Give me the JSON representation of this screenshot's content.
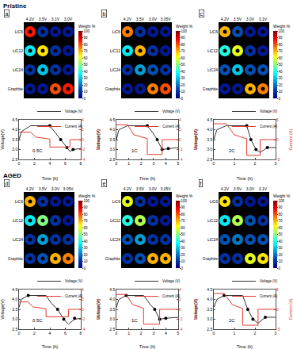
{
  "chart_data": [
    {
      "type": "line",
      "group": "Pristine",
      "panel": "a",
      "annotation": "0.5C",
      "xlabel": "Time (h)",
      "ylabel": "Voltage(V)",
      "y2label": "Current (A)",
      "legend": "upper right",
      "xlim": [
        0,
        8
      ],
      "xticks": [
        0,
        2,
        4,
        6,
        8
      ],
      "ylim": [
        2.5,
        4.5
      ],
      "yticks": [
        2.5,
        {
          "value": 3,
          "label": "3.0"
        },
        3.5,
        {
          "value": 4,
          "label": "4.0"
        },
        4.5
      ],
      "y2lim": [
        -4,
        4
      ],
      "y2ticks": [
        -4,
        -2,
        0,
        2,
        4
      ],
      "series": [
        {
          "name": "Voltage (V)",
          "color": "#333333",
          "line_style": "solid",
          "x": [
            0,
            0.3,
            1.5,
            4,
            4.6,
            5.4,
            6.2,
            6.6,
            7,
            8
          ],
          "values": [
            3.5,
            3.9,
            4.2,
            4.2,
            3.9,
            3.5,
            3.1,
            2.9,
            3.0,
            3.05
          ]
        },
        {
          "name": "Current (A)",
          "color": "#e03a2f",
          "line_style": "solid",
          "axis": "y2",
          "x": [
            0,
            1.5,
            2.2,
            4,
            4,
            6.6,
            6.6,
            8
          ],
          "values": [
            1.5,
            1.5,
            0.5,
            0.1,
            -1.5,
            -1.5,
            0,
            0
          ]
        },
        {
          "type": "scatter",
          "marker": "circle",
          "color": "#000000",
          "x": [
            4,
            5.4,
            6.2,
            7
          ],
          "values": [
            4.2,
            3.5,
            3.1,
            3.0
          ]
        }
      ],
      "maps": {
        "columns": [
          "4.2V",
          "3.5V",
          "3.1V",
          "3.0V"
        ],
        "rows": [
          "LiC6",
          "LiC12",
          "LiC24",
          "Graphite"
        ],
        "values": [
          [
            85,
            10,
            5,
            5
          ],
          [
            35,
            65,
            10,
            5
          ],
          [
            10,
            30,
            10,
            5
          ],
          [
            5,
            5,
            80,
            85
          ]
        ],
        "colorbar": {
          "title": "Weight %",
          "range": [
            0,
            100
          ],
          "ticks": [
            0,
            10,
            20,
            30,
            40,
            50,
            60,
            70,
            80,
            90,
            100
          ]
        }
      }
    },
    {
      "type": "line",
      "group": "Pristine",
      "panel": "b",
      "annotation": "1C",
      "xlabel": "Time (h)",
      "ylabel": "Voltage(V)",
      "y2label": "Current (A)",
      "legend": "upper right",
      "xlim": [
        0,
        5
      ],
      "xticks": [
        0,
        1,
        2,
        3,
        4,
        5
      ],
      "ylim": [
        2.5,
        4.5
      ],
      "yticks": [
        2.5,
        {
          "value": 3,
          "label": "3.0"
        },
        3.5,
        {
          "value": 4,
          "label": "4.0"
        },
        4.5
      ],
      "y2lim": [
        -4,
        4
      ],
      "y2ticks": [
        -4,
        -2,
        0,
        2,
        4
      ],
      "series": [
        {
          "name": "Voltage (V)",
          "color": "#333333",
          "line_style": "solid",
          "x": [
            0,
            0.2,
            0.9,
            2.5,
            3,
            3.3,
            3.7,
            4.2,
            5
          ],
          "values": [
            3.5,
            4.0,
            4.2,
            4.2,
            3.8,
            3.5,
            3.0,
            3.05,
            3.1
          ]
        },
        {
          "name": "Current (A)",
          "color": "#e03a2f",
          "line_style": "solid",
          "axis": "y2",
          "x": [
            0,
            0.9,
            1.4,
            2.5,
            2.5,
            3.7,
            3.7,
            5
          ],
          "values": [
            3,
            3,
            1,
            0.2,
            -3,
            -3,
            0,
            0
          ]
        },
        {
          "type": "scatter",
          "marker": "circle",
          "color": "#000000",
          "x": [
            2.5,
            3.3,
            3.7,
            4.2
          ],
          "values": [
            4.2,
            3.5,
            3.0,
            3.05
          ]
        }
      ],
      "maps": {
        "columns": [
          "4.2V",
          "3.5V",
          "3.0V",
          "3.05V"
        ],
        "rows": [
          "LiC6",
          "LiC12",
          "LiC24",
          "Graphite"
        ],
        "values": [
          [
            75,
            10,
            5,
            5
          ],
          [
            35,
            70,
            10,
            5
          ],
          [
            10,
            25,
            15,
            10
          ],
          [
            5,
            5,
            75,
            80
          ]
        ],
        "colorbar": {
          "title": "Weight %",
          "range": [
            0,
            100
          ],
          "ticks": [
            0,
            10,
            20,
            30,
            40,
            50,
            60,
            70,
            80,
            90,
            100
          ]
        }
      }
    },
    {
      "type": "line",
      "group": "Pristine",
      "panel": "c",
      "annotation": "2C",
      "xlabel": "Time (h)",
      "ylabel": "Voltage(V)",
      "y2label": "Current (A)",
      "legend": "upper right",
      "xlim": [
        0,
        3
      ],
      "xticks": [
        0,
        1,
        2,
        3
      ],
      "ylim": [
        2.5,
        4.5
      ],
      "yticks": [
        2.5,
        {
          "value": 3,
          "label": "3.0"
        },
        3.5,
        {
          "value": 4,
          "label": "4.0"
        },
        4.5
      ],
      "y2lim": [
        -5,
        5
      ],
      "y2ticks": [
        -5,
        0,
        5
      ],
      "series": [
        {
          "name": "Voltage (V)",
          "color": "#333333",
          "line_style": "solid",
          "x": [
            0,
            0.15,
            0.6,
            1.6,
            1.8,
            2.05,
            2.25,
            2.6,
            3
          ],
          "values": [
            3.5,
            4.0,
            4.2,
            4.2,
            3.5,
            3.0,
            2.85,
            3.1,
            3.1
          ]
        },
        {
          "name": "Current (A)",
          "color": "#e03a2f",
          "line_style": "solid",
          "axis": "y2",
          "x": [
            0,
            0.6,
            1,
            1.6,
            1.6,
            2.25,
            2.25,
            3
          ],
          "values": [
            4,
            4,
            1.2,
            0.2,
            -4,
            -4,
            0,
            0
          ]
        },
        {
          "type": "scatter",
          "marker": "circle",
          "color": "#000000",
          "x": [
            1.6,
            1.8,
            2.05,
            2.6
          ],
          "values": [
            4.2,
            3.5,
            3.0,
            3.1
          ]
        }
      ],
      "maps": {
        "columns": [
          "4.2V",
          "3.5V",
          "3.0V",
          "3.1V"
        ],
        "rows": [
          "LiC6",
          "LiC12",
          "LiC24",
          "Graphite"
        ],
        "values": [
          [
            70,
            15,
            5,
            5
          ],
          [
            40,
            60,
            10,
            5
          ],
          [
            15,
            30,
            15,
            15
          ],
          [
            5,
            5,
            70,
            75
          ]
        ],
        "colorbar": {
          "title": "Weight %",
          "range": [
            0,
            100
          ],
          "ticks": [
            0,
            10,
            20,
            30,
            40,
            50,
            60,
            70,
            80,
            90,
            100
          ]
        }
      }
    },
    {
      "type": "line",
      "group": "AGED",
      "panel": "d",
      "annotation": "0.5C",
      "xlabel": "Time (h)",
      "ylabel": "Voltage(V)",
      "y2label": "Current (A)",
      "legend": "upper right",
      "xlim": [
        0,
        8
      ],
      "xticks": [
        0,
        2,
        4,
        6,
        8
      ],
      "ylim": [
        2.5,
        4.5
      ],
      "yticks": [
        2.5,
        {
          "value": 3,
          "label": "3.0"
        },
        3.5,
        {
          "value": 4,
          "label": "4.0"
        },
        4.5
      ],
      "y2lim": [
        -4,
        4
      ],
      "y2ticks": [
        -4,
        -2,
        0,
        2,
        4
      ],
      "series": [
        {
          "name": "Voltage (V)",
          "color": "#333333",
          "line_style": "solid",
          "x": [
            0,
            0.3,
            1.2,
            3.5,
            4.2,
            5,
            5.8,
            6.4,
            7.2,
            8
          ],
          "values": [
            3.6,
            4.0,
            4.2,
            4.2,
            3.8,
            3.5,
            3.0,
            2.75,
            3.0,
            3.05
          ]
        },
        {
          "name": "Current (A)",
          "color": "#e03a2f",
          "line_style": "solid",
          "axis": "y2",
          "x": [
            0,
            1.2,
            1.8,
            3.5,
            3.5,
            6.4,
            6.4,
            8
          ],
          "values": [
            1.5,
            1.5,
            0.5,
            0.1,
            -1.5,
            -1.5,
            0,
            0
          ]
        },
        {
          "type": "scatter",
          "marker": "circle",
          "color": "#000000",
          "x": [
            1.2,
            5,
            5.8,
            7.2
          ],
          "values": [
            4.2,
            3.5,
            3.0,
            3.05
          ]
        }
      ],
      "maps": {
        "columns": [
          "4.2V",
          "3.5V",
          "3.0V",
          "3.05V"
        ],
        "rows": [
          "LiC6",
          "LiC12",
          "LiC24",
          "Graphite"
        ],
        "values": [
          [
            70,
            10,
            5,
            5
          ],
          [
            35,
            50,
            10,
            5
          ],
          [
            10,
            25,
            10,
            10
          ],
          [
            10,
            15,
            70,
            75
          ]
        ],
        "colorbar": {
          "title": "Weight %",
          "range": [
            0,
            100
          ],
          "ticks": [
            0,
            10,
            20,
            30,
            40,
            50,
            60,
            70,
            80,
            90,
            100
          ]
        }
      }
    },
    {
      "type": "line",
      "group": "AGED",
      "panel": "e",
      "annotation": "1C",
      "xlabel": "Time (h)",
      "ylabel": "Voltage(V)",
      "y2label": "Current (A)",
      "legend": "upper right",
      "xlim": [
        0,
        5
      ],
      "xticks": [
        0,
        1,
        2,
        3,
        4,
        5
      ],
      "ylim": [
        2.5,
        4.5
      ],
      "yticks": [
        2.5,
        {
          "value": 3,
          "label": "3.0"
        },
        3.5,
        {
          "value": 4,
          "label": "4.0"
        },
        4.5
      ],
      "y2lim": [
        -4,
        4
      ],
      "y2ticks": [
        -4,
        -2,
        0,
        2,
        4
      ],
      "series": [
        {
          "name": "Voltage (V)",
          "color": "#333333",
          "line_style": "solid",
          "x": [
            0,
            0.2,
            0.8,
            2.2,
            2.8,
            3.1,
            3.5,
            4,
            5
          ],
          "values": [
            3.6,
            4.0,
            4.2,
            4.2,
            3.7,
            3.5,
            3.0,
            3.05,
            3.1
          ]
        },
        {
          "name": "Current (A)",
          "color": "#e03a2f",
          "line_style": "solid",
          "axis": "y2",
          "x": [
            0,
            0.8,
            1.3,
            2.2,
            2.2,
            3.5,
            3.5,
            5
          ],
          "values": [
            3,
            3,
            1,
            0.2,
            -3,
            -3,
            0,
            0
          ]
        },
        {
          "type": "scatter",
          "marker": "circle",
          "color": "#000000",
          "x": [
            0.8,
            3.1,
            3.5,
            4
          ],
          "values": [
            4.2,
            3.5,
            3.0,
            3.05
          ]
        }
      ],
      "maps": {
        "columns": [
          "4.2V",
          "3.5V",
          "3.0V",
          "3.05V"
        ],
        "rows": [
          "LiC6",
          "LiC12",
          "LiC24",
          "Graphite"
        ],
        "values": [
          [
            60,
            10,
            5,
            5
          ],
          [
            40,
            55,
            10,
            5
          ],
          [
            15,
            25,
            10,
            10
          ],
          [
            10,
            15,
            70,
            70
          ]
        ],
        "colorbar": {
          "title": "Weight %",
          "range": [
            0,
            100
          ],
          "ticks": [
            0,
            10,
            20,
            30,
            40,
            50,
            60,
            70,
            80,
            90,
            100
          ]
        }
      }
    },
    {
      "type": "line",
      "group": "AGED",
      "panel": "f",
      "annotation": "2C",
      "xlabel": "Time (h)",
      "ylabel": "Voltage(V)",
      "y2label": "Current (A)",
      "legend": "upper right",
      "xlim": [
        0,
        3
      ],
      "xticks": [
        0,
        1,
        2,
        3
      ],
      "ylim": [
        2.5,
        4.5
      ],
      "yticks": [
        2.5,
        {
          "value": 3,
          "label": "3.0"
        },
        3.5,
        {
          "value": 4,
          "label": "4.0"
        },
        4.5
      ],
      "y2lim": [
        -5,
        5
      ],
      "y2ticks": [
        -5,
        0,
        5
      ],
      "series": [
        {
          "name": "Voltage (V)",
          "color": "#333333",
          "line_style": "solid",
          "x": [
            0,
            0.15,
            0.5,
            1.4,
            1.65,
            1.9,
            2.15,
            2.5,
            3
          ],
          "values": [
            3.6,
            4.0,
            4.2,
            4.2,
            3.5,
            3.0,
            2.8,
            3.1,
            3.1
          ]
        },
        {
          "name": "Current (A)",
          "color": "#e03a2f",
          "line_style": "solid",
          "axis": "y2",
          "x": [
            0,
            0.5,
            0.9,
            1.4,
            1.4,
            2.15,
            2.15,
            3
          ],
          "values": [
            4,
            4,
            1.2,
            0.2,
            -4,
            -4,
            0,
            0
          ]
        },
        {
          "type": "scatter",
          "marker": "circle",
          "color": "#000000",
          "x": [
            0.5,
            1.65,
            1.9,
            2.5
          ],
          "values": [
            4.2,
            3.5,
            3.0,
            3.1
          ]
        }
      ],
      "maps": {
        "columns": [
          "4.2V",
          "3.5V",
          "3.0V",
          "3.1V"
        ],
        "rows": [
          "LiC6",
          "LiC12",
          "LiC24",
          "Graphite"
        ],
        "values": [
          [
            65,
            10,
            5,
            5
          ],
          [
            35,
            55,
            15,
            10
          ],
          [
            15,
            20,
            15,
            15
          ],
          [
            10,
            10,
            60,
            65
          ]
        ],
        "colorbar": {
          "title": "Weight %",
          "range": [
            0,
            100
          ],
          "ticks": [
            0,
            10,
            20,
            30,
            40,
            50,
            60,
            70,
            80,
            90,
            100
          ]
        }
      }
    }
  ]
}
